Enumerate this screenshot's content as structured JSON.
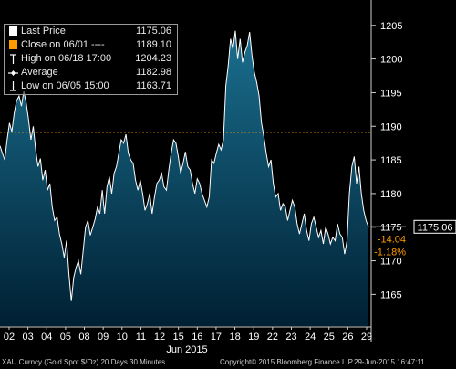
{
  "chart_data": {
    "type": "area",
    "x_ticks": [
      "02",
      "03",
      "04",
      "05",
      "08",
      "09",
      "10",
      "11",
      "12",
      "15",
      "16",
      "17",
      "18",
      "19",
      "22",
      "23",
      "24",
      "25",
      "26",
      "29"
    ],
    "x_month_label": "Jun 2015",
    "y_ticks": [
      1165,
      1170,
      1175,
      1180,
      1185,
      1190,
      1195,
      1200,
      1205
    ],
    "ylim": [
      1160.3,
      1208.5
    ],
    "grid": false,
    "series": [
      {
        "name": "Last Price",
        "color": "#ffffff",
        "fill_top": "#1a6f8f",
        "fill_bottom": "#002033",
        "values": [
          1187.1,
          1186.0,
          1185.0,
          1188.0,
          1190.5,
          1189.2,
          1192.0,
          1193.8,
          1194.5,
          1193.0,
          1195.2,
          1193.5,
          1191.0,
          1188.0,
          1190.0,
          1186.5,
          1184.0,
          1185.2,
          1182.0,
          1183.5,
          1180.5,
          1181.5,
          1178.0,
          1176.0,
          1176.5,
          1174.0,
          1172.5,
          1170.5,
          1173.0,
          1168.0,
          1164.0,
          1167.5,
          1169.0,
          1170.0,
          1168.0,
          1171.5,
          1175.0,
          1176.0,
          1173.8,
          1175.0,
          1176.2,
          1178.0,
          1177.0,
          1180.5,
          1177.0,
          1181.0,
          1182.5,
          1180.0,
          1183.0,
          1184.0,
          1186.0,
          1188.0,
          1187.5,
          1188.8,
          1186.0,
          1185.0,
          1184.5,
          1182.0,
          1180.5,
          1182.0,
          1180.0,
          1177.5,
          1178.5,
          1180.0,
          1177.0,
          1179.5,
          1181.5,
          1182.0,
          1183.0,
          1181.0,
          1180.5,
          1183.5,
          1186.0,
          1188.0,
          1187.5,
          1185.5,
          1183.0,
          1184.5,
          1186.2,
          1184.0,
          1183.5,
          1181.5,
          1180.0,
          1182.2,
          1181.5,
          1180.0,
          1179.0,
          1178.0,
          1179.5,
          1185.0,
          1184.5,
          1186.0,
          1187.3,
          1186.5,
          1188.0,
          1196.0,
          1199.0,
          1203.0,
          1201.5,
          1204.2,
          1200.0,
          1203.0,
          1199.5,
          1201.0,
          1202.0,
          1204.0,
          1200.5,
          1198.0,
          1196.5,
          1194.5,
          1190.5,
          1188.5,
          1186.0,
          1184.0,
          1185.0,
          1181.5,
          1179.5,
          1180.0,
          1177.5,
          1178.5,
          1178.0,
          1176.0,
          1177.5,
          1179.0,
          1178.0,
          1175.5,
          1174.0,
          1175.5,
          1177.0,
          1174.5,
          1173.0,
          1175.5,
          1176.5,
          1175.0,
          1173.5,
          1174.5,
          1172.5,
          1175.0,
          1174.0,
          1172.5,
          1173.5,
          1173.0,
          1175.5,
          1174.0,
          1173.5,
          1171.0,
          1173.0,
          1180.0,
          1184.0,
          1185.5,
          1181.5,
          1184.0,
          1180.0,
          1177.5,
          1176.0,
          1175.06
        ]
      },
      {
        "name": "Close on 06/01",
        "color": "#ff9a00",
        "style": "dashed",
        "value": 1189.1
      }
    ],
    "current_price_label": "1175.06",
    "change_label": "-14.04",
    "change_pct_label": "-1.18%"
  },
  "legend": [
    {
      "icon": "white-square",
      "label": "Last Price",
      "value": "1175.06"
    },
    {
      "icon": "orange-square",
      "label": "Close on 06/01 ----",
      "value": "1189.10"
    },
    {
      "icon": "high-marker",
      "label": "High on 06/18 17:00",
      "value": "1204.23"
    },
    {
      "icon": "average-marker",
      "label": "Average",
      "value": "1182.98"
    },
    {
      "icon": "low-marker",
      "label": "Low on 06/05 15:00",
      "value": "1163.71"
    }
  ],
  "footer": {
    "security": "XAU Curncy (Gold Spot  $/Oz) 20 Days 30 Minutes",
    "copyright": "Copyright© 2015 Bloomberg Finance L.P.",
    "timestamp": "29-Jun-2015 16:47:11"
  },
  "colors": {
    "background": "#000000",
    "accent": "#ff9a00",
    "line": "#ffffff"
  }
}
